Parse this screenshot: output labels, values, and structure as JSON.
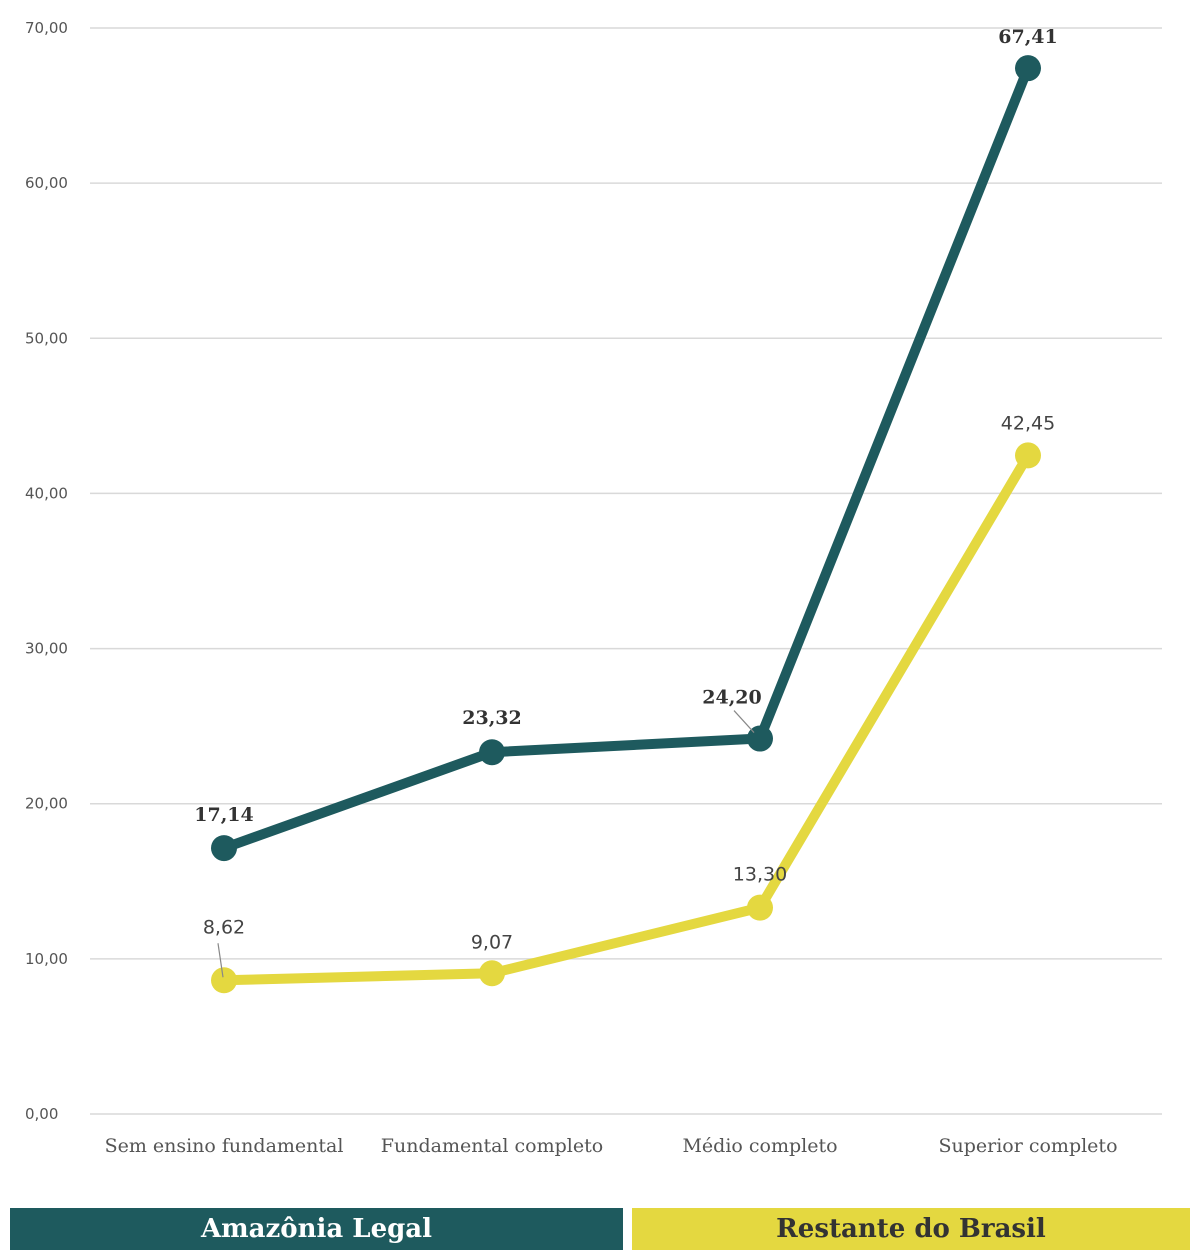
{
  "chart_data": {
    "type": "line",
    "categories": [
      "Sem ensino fundamental",
      "Fundamental completo",
      "Médio completo",
      "Superior completo"
    ],
    "series": [
      {
        "name": "Amazônia Legal",
        "values": [
          17.14,
          23.32,
          24.2,
          67.41
        ],
        "labels": [
          "17,14",
          "23,32",
          "24,20",
          "67,41"
        ],
        "color": "#1e5a5e"
      },
      {
        "name": "Restante do Brasil",
        "values": [
          8.62,
          9.07,
          13.3,
          42.45
        ],
        "labels": [
          "8,62",
          "9,07",
          "13,30",
          "42,45"
        ],
        "color": "#e4d840"
      }
    ],
    "yticks": [
      {
        "value": 0,
        "label": "0,00"
      },
      {
        "value": 10,
        "label": "10,00"
      },
      {
        "value": 20,
        "label": "20,00"
      },
      {
        "value": 30,
        "label": "30,00"
      },
      {
        "value": 40,
        "label": "40,00"
      },
      {
        "value": 50,
        "label": "50,00"
      },
      {
        "value": 60,
        "label": "60,00"
      },
      {
        "value": 70,
        "label": "70,00"
      }
    ],
    "ylim": [
      0,
      70
    ],
    "grid": true,
    "legend_position": "bottom"
  }
}
